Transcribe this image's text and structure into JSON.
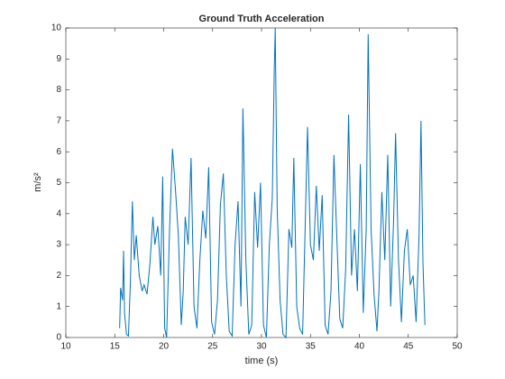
{
  "chart_data": {
    "type": "line",
    "title": "Ground Truth Acceleration",
    "xlabel": "time (s)",
    "ylabel": "m/s²",
    "color": "#0072bd",
    "xlim": [
      10,
      50
    ],
    "xticks": [
      10,
      15,
      20,
      25,
      30,
      35,
      40,
      45,
      50
    ],
    "ylim": [
      0,
      10
    ],
    "yticks": [
      0,
      1,
      2,
      3,
      4,
      5,
      6,
      7,
      8,
      9,
      10
    ],
    "x": [
      15.5,
      15.6,
      15.8,
      15.9,
      16.0,
      16.2,
      16.4,
      16.6,
      16.8,
      17.0,
      17.2,
      17.5,
      17.8,
      18.0,
      18.3,
      18.6,
      18.9,
      19.1,
      19.4,
      19.7,
      19.9,
      20.1,
      20.3,
      20.6,
      20.9,
      21.2,
      21.5,
      21.8,
      22.0,
      22.2,
      22.5,
      22.8,
      23.1,
      23.4,
      23.7,
      24.0,
      24.3,
      24.6,
      24.9,
      25.2,
      25.5,
      25.8,
      26.1,
      26.4,
      26.7,
      27.0,
      27.3,
      27.6,
      27.9,
      28.1,
      28.4,
      28.7,
      29.0,
      29.3,
      29.6,
      29.9,
      30.2,
      30.5,
      30.8,
      31.1,
      31.3,
      31.4,
      31.6,
      31.9,
      32.2,
      32.5,
      32.8,
      33.1,
      33.3,
      33.6,
      33.9,
      34.2,
      34.5,
      34.7,
      35.0,
      35.3,
      35.6,
      35.9,
      36.2,
      36.5,
      36.8,
      37.1,
      37.4,
      37.7,
      38.0,
      38.3,
      38.6,
      38.9,
      39.2,
      39.5,
      39.8,
      40.1,
      40.4,
      40.7,
      40.9,
      41.2,
      41.5,
      41.8,
      42.0,
      42.3,
      42.6,
      42.9,
      43.2,
      43.5,
      43.7,
      44.0,
      44.3,
      44.6,
      44.9,
      45.2,
      45.5,
      45.8,
      46.1,
      46.3,
      46.5,
      46.7
    ],
    "values": [
      0.3,
      1.6,
      1.2,
      2.8,
      0.8,
      0.1,
      0.05,
      1.8,
      4.4,
      2.5,
      3.3,
      2.0,
      1.5,
      1.7,
      1.4,
      2.4,
      3.9,
      3.0,
      3.6,
      2.0,
      5.2,
      0.3,
      0.0,
      3.5,
      6.1,
      4.8,
      3.3,
      0.4,
      1.5,
      3.9,
      3.0,
      5.8,
      1.0,
      0.3,
      2.5,
      4.1,
      3.2,
      5.5,
      0.5,
      0.1,
      1.2,
      4.3,
      5.3,
      2.0,
      0.2,
      0.05,
      3.0,
      4.4,
      1.0,
      7.4,
      2.5,
      0.1,
      0.4,
      4.7,
      2.9,
      5.0,
      0.4,
      0.0,
      3.0,
      4.5,
      8.6,
      10.0,
      4.2,
      1.2,
      0.1,
      0.0,
      3.5,
      2.9,
      5.8,
      1.0,
      0.3,
      0.1,
      4.1,
      6.8,
      3.0,
      2.5,
      4.9,
      2.8,
      4.6,
      0.4,
      0.1,
      1.5,
      5.9,
      3.2,
      0.6,
      0.3,
      2.2,
      7.2,
      2.0,
      3.5,
      1.5,
      5.6,
      0.8,
      3.5,
      9.8,
      3.5,
      1.4,
      0.2,
      1.5,
      4.7,
      2.5,
      5.9,
      1.0,
      3.8,
      6.6,
      2.5,
      0.5,
      2.8,
      3.5,
      1.7,
      2.0,
      0.5,
      3.3,
      7.0,
      2.4,
      0.4
    ]
  }
}
